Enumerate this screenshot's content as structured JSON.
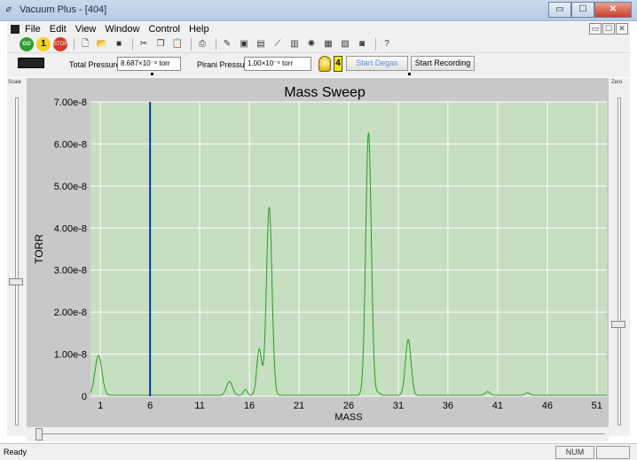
{
  "window": {
    "title": "Vacuum Plus - [404]",
    "app_icon": "vacuum-plus-icon",
    "minimize_glyph": "▭",
    "maximize_glyph": "☐",
    "close_glyph": "✕"
  },
  "menu": {
    "items": [
      "File",
      "Edit",
      "View",
      "Window",
      "Control",
      "Help"
    ]
  },
  "toolbar": {
    "go_label": "GO",
    "one_label": "1",
    "stop_label": "STOP",
    "icons": [
      "new-file-icon",
      "open-folder-icon",
      "save-icon",
      "cut-icon",
      "copy-icon",
      "paste-icon",
      "print-icon",
      "pen-icon",
      "display-icon",
      "text-display-icon",
      "tweezers-icon",
      "bars-icon",
      "filament-icon",
      "grid-icon",
      "spectrum-icon",
      "device-icon",
      "help-icon"
    ],
    "help_glyph": "?"
  },
  "status": {
    "total_pressure_label": "Total Pressure",
    "total_pressure_value": "8.687×10⁻⁸ torr",
    "pirani_label": "Pirani Pressure",
    "pirani_value": "1.00×10⁻⁴ torr",
    "flame_glyph": "4",
    "start_degas": "Start Degas",
    "start_recording": "Start Recording"
  },
  "panels": {
    "scale_caption": "Scale",
    "zero_caption": "Zero"
  },
  "chart_data": {
    "type": "line",
    "title": "Mass Sweep",
    "xlabel": "MASS",
    "ylabel": "TORR",
    "xlim": [
      0,
      52
    ],
    "ylim": [
      0,
      7e-08
    ],
    "x_ticks": [
      1,
      6,
      11,
      16,
      21,
      26,
      31,
      36,
      41,
      46,
      51
    ],
    "y_ticks": [
      0,
      1e-08,
      2e-08,
      3e-08,
      4e-08,
      5e-08,
      6e-08,
      7e-08
    ],
    "y_tick_labels": [
      "0",
      "1.00e-8",
      "2.00e-8",
      "3.00e-8",
      "4.00e-8",
      "5.00e-8",
      "6.00e-8",
      "7.00e-8"
    ],
    "grid": true,
    "background": "#c5dfc0",
    "line_color": "#2a9a2a",
    "cursor": {
      "x": 6,
      "color": "#1030c0"
    },
    "baseline": 2e-10,
    "peaks": [
      {
        "mass": 0.8,
        "height": 9.5e-09,
        "width": 0.35
      },
      {
        "mass": 14,
        "height": 3.3e-09,
        "width": 0.3
      },
      {
        "mass": 15.6,
        "height": 1.4e-09,
        "width": 0.2
      },
      {
        "mass": 17,
        "height": 1.1e-08,
        "width": 0.25
      },
      {
        "mass": 18,
        "height": 4.48e-08,
        "width": 0.28
      },
      {
        "mass": 28,
        "height": 6.25e-08,
        "width": 0.28
      },
      {
        "mass": 29,
        "height": 6e-10,
        "width": 0.2
      },
      {
        "mass": 32,
        "height": 1.33e-08,
        "width": 0.28
      },
      {
        "mass": 40,
        "height": 9e-10,
        "width": 0.25
      },
      {
        "mass": 44,
        "height": 6e-10,
        "width": 0.25
      }
    ]
  },
  "statusbar": {
    "ready": "Ready",
    "num": "NUM"
  }
}
